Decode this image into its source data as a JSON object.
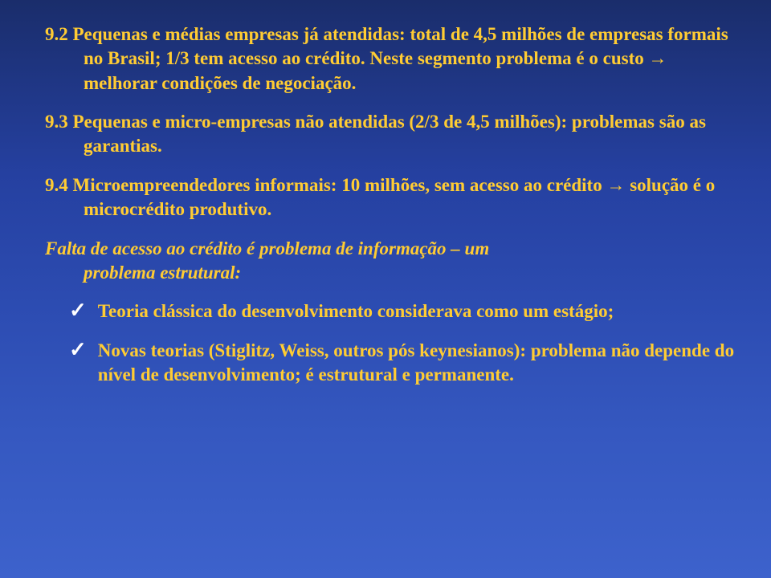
{
  "slide": {
    "text_color": "#ffcc33",
    "check_color": "#ffffff",
    "font_size_pt": 23,
    "items": [
      {
        "type": "numbered",
        "text": "9.2 Pequenas e médias empresas já atendidas: total de 4,5 milhões de empresas formais no Brasil; 1/3 tem acesso ao crédito. Neste segmento problema é o custo → melhorar condições de negociação."
      },
      {
        "type": "numbered",
        "text": "9.3 Pequenas e micro-empresas não atendidas (2/3 de 4,5 milhões): problemas são as garantias."
      },
      {
        "type": "numbered",
        "text": "9.4 Microempreendedores informais: 10 milhões, sem acesso ao crédito → solução é o microcrédito produtivo."
      },
      {
        "type": "italic",
        "line1": "Falta de acesso ao crédito é problema de informação – um",
        "line2": "problema estrutural:"
      },
      {
        "type": "bullet",
        "text": "Teoria clássica do desenvolvimento considerava como um estágio;"
      },
      {
        "type": "bullet",
        "text": "Novas teorias  (Stiglitz, Weiss, outros pós keynesianos): problema não depende do nível de desenvolvimento; é estrutural e permanente."
      }
    ]
  }
}
